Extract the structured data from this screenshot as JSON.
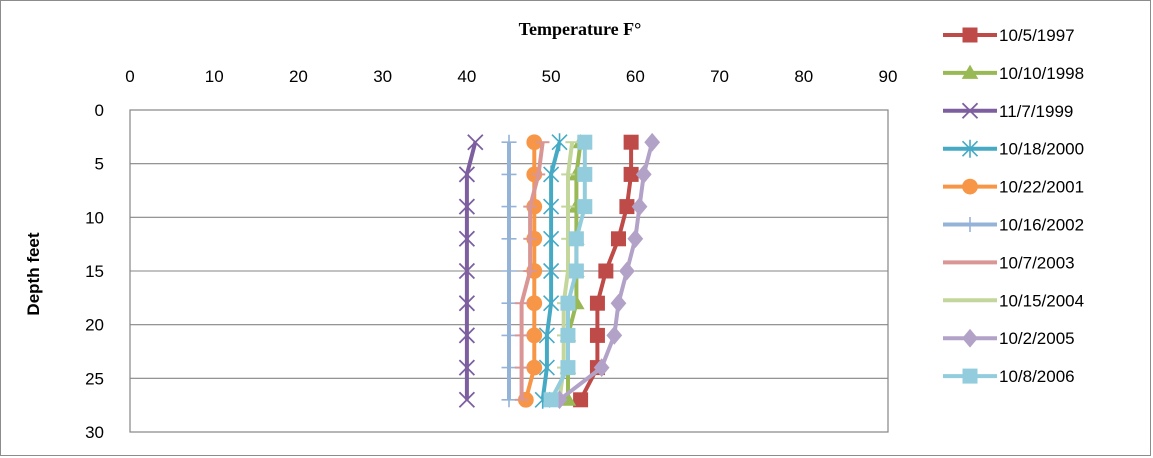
{
  "chart_data": {
    "type": "line",
    "title": "Temperature F°",
    "xlabel": "Temperature F°",
    "ylabel": "Depth feet",
    "xlim": [
      0,
      90
    ],
    "ylim": [
      0,
      30
    ],
    "y_reversed": true,
    "x_axis_position": "top",
    "xticks": [
      0,
      10,
      20,
      30,
      40,
      50,
      60,
      70,
      80,
      90
    ],
    "yticks": [
      0,
      5,
      10,
      15,
      20,
      25,
      30
    ],
    "grid": "horizontal",
    "legend_position": "right",
    "depths": [
      3,
      6,
      9,
      12,
      15,
      18,
      21,
      24,
      27
    ],
    "series": [
      {
        "name": "10/5/1997",
        "color": "#be4b48",
        "marker": "square",
        "values": [
          59.5,
          59.5,
          59,
          58,
          56.5,
          55.5,
          55.5,
          55.5,
          53.5
        ]
      },
      {
        "name": "10/10/1998",
        "color": "#98b954",
        "marker": "triangle",
        "values": [
          53.5,
          53,
          53,
          53,
          53,
          53,
          52,
          52,
          52
        ]
      },
      {
        "name": "11/7/1999",
        "color": "#7d5fa0",
        "marker": "x",
        "values": [
          41,
          40,
          40,
          40,
          40,
          40,
          40,
          40,
          40
        ]
      },
      {
        "name": "10/18/2000",
        "color": "#46aac5",
        "marker": "star",
        "values": [
          51,
          50,
          50,
          50,
          50,
          50,
          49.5,
          49.5,
          49
        ]
      },
      {
        "name": "10/22/2001",
        "color": "#f79646",
        "marker": "circle",
        "values": [
          48,
          48,
          48,
          48,
          48,
          48,
          48,
          48,
          47
        ]
      },
      {
        "name": "10/16/2002",
        "color": "#95b3d7",
        "marker": "plus",
        "values": [
          45,
          45,
          45,
          45,
          45,
          45,
          45,
          45,
          45
        ]
      },
      {
        "name": "10/7/2003",
        "color": "#d99694",
        "marker": "dash",
        "values": [
          49,
          48.5,
          47.5,
          47.5,
          47.5,
          46.5,
          46.5,
          46.5,
          46.5
        ]
      },
      {
        "name": "10/15/2004",
        "color": "#c3d69b",
        "marker": "dash",
        "values": [
          52.5,
          52,
          52,
          52,
          52,
          51.5,
          51.5,
          51.5,
          51
        ]
      },
      {
        "name": "10/2/2005",
        "color": "#b3a2c7",
        "marker": "diamond",
        "values": [
          62,
          61,
          60.5,
          60,
          59,
          58,
          57.5,
          56,
          51
        ]
      },
      {
        "name": "10/8/2006",
        "color": "#93cddd",
        "marker": "square",
        "values": [
          54,
          54,
          54,
          53,
          53,
          52,
          52,
          52,
          50
        ]
      }
    ]
  }
}
